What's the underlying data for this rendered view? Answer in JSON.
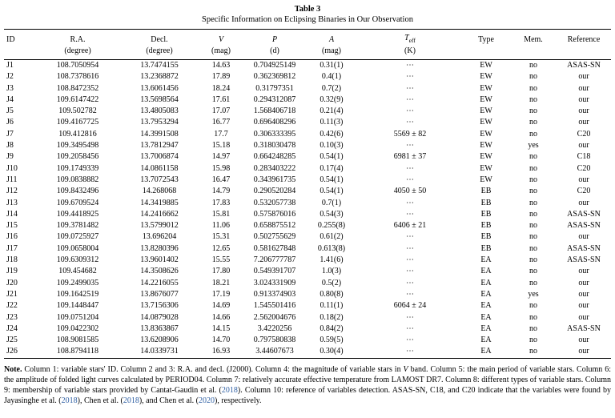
{
  "caption": {
    "number": "Table 3",
    "title": "Specific Information on Eclipsing Binaries in Our Observation"
  },
  "colors": {
    "link": "#2E5FA3"
  },
  "table": {
    "columns": [
      {
        "label": "ID",
        "unit": ""
      },
      {
        "label": "R.A.",
        "unit": "(degree)"
      },
      {
        "label": "Decl.",
        "unit": "(degree)"
      },
      {
        "label": "V",
        "unit": "(mag)",
        "italic": true
      },
      {
        "label": "P",
        "unit": "(d)",
        "italic": true
      },
      {
        "label": "A",
        "unit": "(mag)",
        "italic": true
      },
      {
        "label": "T",
        "sub": "eff",
        "unit": "(K)",
        "italic": true
      },
      {
        "label": "Type",
        "unit": ""
      },
      {
        "label": "Mem.",
        "unit": ""
      },
      {
        "label": "Reference",
        "unit": ""
      }
    ],
    "rows": [
      [
        "J1",
        "108.7050954",
        "13.7474155",
        "14.63",
        "0.704925149",
        "0.31(1)",
        "⋯",
        "EW",
        "no",
        "ASAS-SN"
      ],
      [
        "J2",
        "108.7378616",
        "13.2368872",
        "17.89",
        "0.362369812",
        "0.4(1)",
        "⋯",
        "EW",
        "no",
        "our"
      ],
      [
        "J3",
        "108.8472352",
        "13.6061456",
        "18.24",
        "0.31797351",
        "0.7(2)",
        "⋯",
        "EW",
        "no",
        "our"
      ],
      [
        "J4",
        "109.6147422",
        "13.5698564",
        "17.61",
        "0.294312087",
        "0.32(9)",
        "⋯",
        "EW",
        "no",
        "our"
      ],
      [
        "J5",
        "109.502782",
        "13.4805083",
        "17.07",
        "1.568406718",
        "0.21(4)",
        "⋯",
        "EW",
        "no",
        "our"
      ],
      [
        "J6",
        "109.4167725",
        "13.7953294",
        "16.77",
        "0.696408296",
        "0.11(3)",
        "⋯",
        "EW",
        "no",
        "our"
      ],
      [
        "J7",
        "109.412816",
        "14.3991508",
        "17.7",
        "0.306333395",
        "0.42(6)",
        "5569 ± 82",
        "EW",
        "no",
        "C20"
      ],
      [
        "J8",
        "109.3495498",
        "13.7812947",
        "15.18",
        "0.318030478",
        "0.10(3)",
        "⋯",
        "EW",
        "yes",
        "our"
      ],
      [
        "J9",
        "109.2058456",
        "13.7006874",
        "14.97",
        "0.664248285",
        "0.54(1)",
        "6981 ± 37",
        "EW",
        "no",
        "C18"
      ],
      [
        "J10",
        "109.1749339",
        "14.0861158",
        "15.98",
        "0.283403222",
        "0.17(4)",
        "⋯",
        "EW",
        "no",
        "C20"
      ],
      [
        "J11",
        "109.0838882",
        "13.7072543",
        "16.47",
        "0.343961735",
        "0.54(1)",
        "⋯",
        "EW",
        "no",
        "our"
      ],
      [
        "J12",
        "109.8432496",
        "14.268068",
        "14.79",
        "0.290520284",
        "0.54(1)",
        "4050 ± 50",
        "EB",
        "no",
        "C20"
      ],
      [
        "J13",
        "109.6709524",
        "14.3419885",
        "17.83",
        "0.532057738",
        "0.7(1)",
        "⋯",
        "EB",
        "no",
        "our"
      ],
      [
        "J14",
        "109.4418925",
        "14.2416662",
        "15.81",
        "0.575876016",
        "0.54(3)",
        "⋯",
        "EB",
        "no",
        "ASAS-SN"
      ],
      [
        "J15",
        "109.3781482",
        "13.5799012",
        "11.06",
        "0.658875512",
        "0.255(8)",
        "6406 ± 21",
        "EB",
        "no",
        "ASAS-SN"
      ],
      [
        "J16",
        "109.0725927",
        "13.696204",
        "15.31",
        "0.502755629",
        "0.61(2)",
        "⋯",
        "EB",
        "no",
        "our"
      ],
      [
        "J17",
        "109.0658004",
        "13.8280396",
        "12.65",
        "0.581627848",
        "0.613(8)",
        "⋯",
        "EB",
        "no",
        "ASAS-SN"
      ],
      [
        "J18",
        "109.6309312",
        "13.9601402",
        "15.55",
        "7.206777787",
        "1.41(6)",
        "⋯",
        "EA",
        "no",
        "ASAS-SN"
      ],
      [
        "J19",
        "109.454682",
        "14.3508626",
        "17.80",
        "0.549391707",
        "1.0(3)",
        "⋯",
        "EA",
        "no",
        "our"
      ],
      [
        "J20",
        "109.2499035",
        "14.2216055",
        "18.21",
        "3.024331909",
        "0.5(2)",
        "⋯",
        "EA",
        "no",
        "our"
      ],
      [
        "J21",
        "109.1642519",
        "13.8676077",
        "17.19",
        "0.913374903",
        "0.80(8)",
        "⋯",
        "EA",
        "yes",
        "our"
      ],
      [
        "J22",
        "109.1448447",
        "13.7156306",
        "14.69",
        "1.545501416",
        "0.11(1)",
        "6064 ± 24",
        "EA",
        "no",
        "our"
      ],
      [
        "J23",
        "109.0751204",
        "14.0879028",
        "14.66",
        "2.562004676",
        "0.18(2)",
        "⋯",
        "EA",
        "no",
        "our"
      ],
      [
        "J24",
        "109.0422302",
        "13.8363867",
        "14.15",
        "3.4220256",
        "0.84(2)",
        "⋯",
        "EA",
        "no",
        "ASAS-SN"
      ],
      [
        "J25",
        "108.9081585",
        "13.6208906",
        "14.70",
        "0.797580838",
        "0.59(5)",
        "⋯",
        "EA",
        "no",
        "our"
      ],
      [
        "J26",
        "108.8794118",
        "14.0339731",
        "16.93",
        "3.44607673",
        "0.30(4)",
        "⋯",
        "EA",
        "no",
        "our"
      ]
    ]
  },
  "note": {
    "segments": [
      {
        "text": "Note.",
        "style": "bold"
      },
      {
        "text": " Column 1: variable stars' ID. Column 2 and 3: R.A. and decl. (J2000). Column 4: the magnitude of variable stars in "
      },
      {
        "text": "V",
        "style": "italic"
      },
      {
        "text": " band. Column 5: the main period of variable stars. Column 6: the amplitude of folded light curves calculated by PERIOD04. Column 7: relatively accurate effective temperature from LAMOST DR7. Column 8: different types of variable stars. Column 9: membership of variable stars provided by Cantat-Gaudin et al. ("
      },
      {
        "text": "2018",
        "style": "link"
      },
      {
        "text": "). Column 10: reference of variables detection. ASAS-SN, C18, and C20 indicate that the variables were found by Jayasinghe et al. ("
      },
      {
        "text": "2018",
        "style": "link"
      },
      {
        "text": "), Chen et al. ("
      },
      {
        "text": "2018",
        "style": "link"
      },
      {
        "text": "), and Chen et al. ("
      },
      {
        "text": "2020",
        "style": "link"
      },
      {
        "text": "), respectively."
      }
    ]
  }
}
